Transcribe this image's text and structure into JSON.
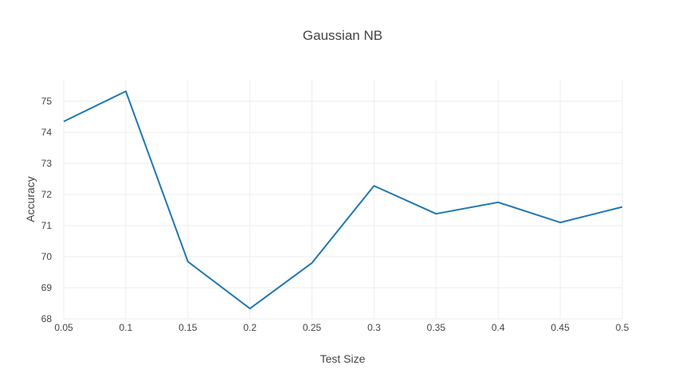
{
  "chart_data": {
    "type": "line",
    "title": "Gaussian NB",
    "xlabel": "Test Size",
    "ylabel": "Accuracy",
    "x": [
      0.05,
      0.1,
      0.15,
      0.2,
      0.25,
      0.3,
      0.35,
      0.4,
      0.45,
      0.5
    ],
    "series": [
      {
        "values": [
          74.35,
          75.32,
          69.84,
          68.33,
          69.8,
          72.28,
          71.38,
          71.75,
          71.1,
          71.6
        ]
      }
    ],
    "xlim": [
      0.05,
      0.5
    ],
    "ylim": [
      68,
      75.75
    ],
    "x_ticks": [
      "0.05",
      "0.1",
      "0.15",
      "0.2",
      "0.25",
      "0.3",
      "0.35",
      "0.4",
      "0.45",
      "0.5"
    ],
    "y_ticks": [
      "68",
      "69",
      "70",
      "71",
      "72",
      "73",
      "74",
      "75"
    ],
    "grid": true,
    "line_color": "#1f77b4"
  }
}
